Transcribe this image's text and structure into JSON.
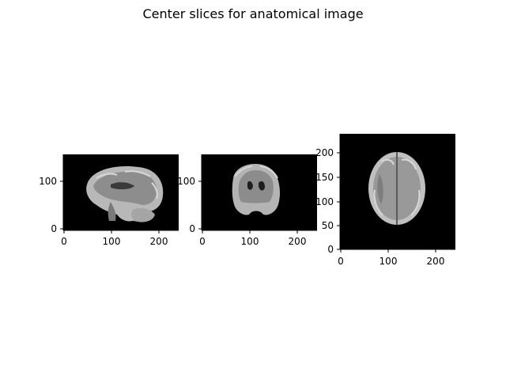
{
  "figure": {
    "title": "Center slices for anatomical image"
  },
  "panels": [
    {
      "name": "sagittal",
      "x_ticks": [
        "0",
        "100",
        "200"
      ],
      "y_ticks": [
        "0",
        "100"
      ],
      "x_range": [
        0,
        240
      ],
      "y_range": [
        0,
        155
      ]
    },
    {
      "name": "coronal",
      "x_ticks": [
        "0",
        "100",
        "200"
      ],
      "y_ticks": [
        "0",
        "100"
      ],
      "x_range": [
        0,
        240
      ],
      "y_range": [
        0,
        155
      ]
    },
    {
      "name": "axial",
      "x_ticks": [
        "0",
        "100",
        "200"
      ],
      "y_ticks": [
        "0",
        "50",
        "100",
        "150",
        "200"
      ],
      "x_range": [
        0,
        240
      ],
      "y_range": [
        0,
        240
      ]
    }
  ],
  "colors": {
    "background": "#000000",
    "tissue_light": "#bfbfbf",
    "tissue_mid": "#8a8a8a",
    "tissue_dark": "#4a4a4a"
  }
}
